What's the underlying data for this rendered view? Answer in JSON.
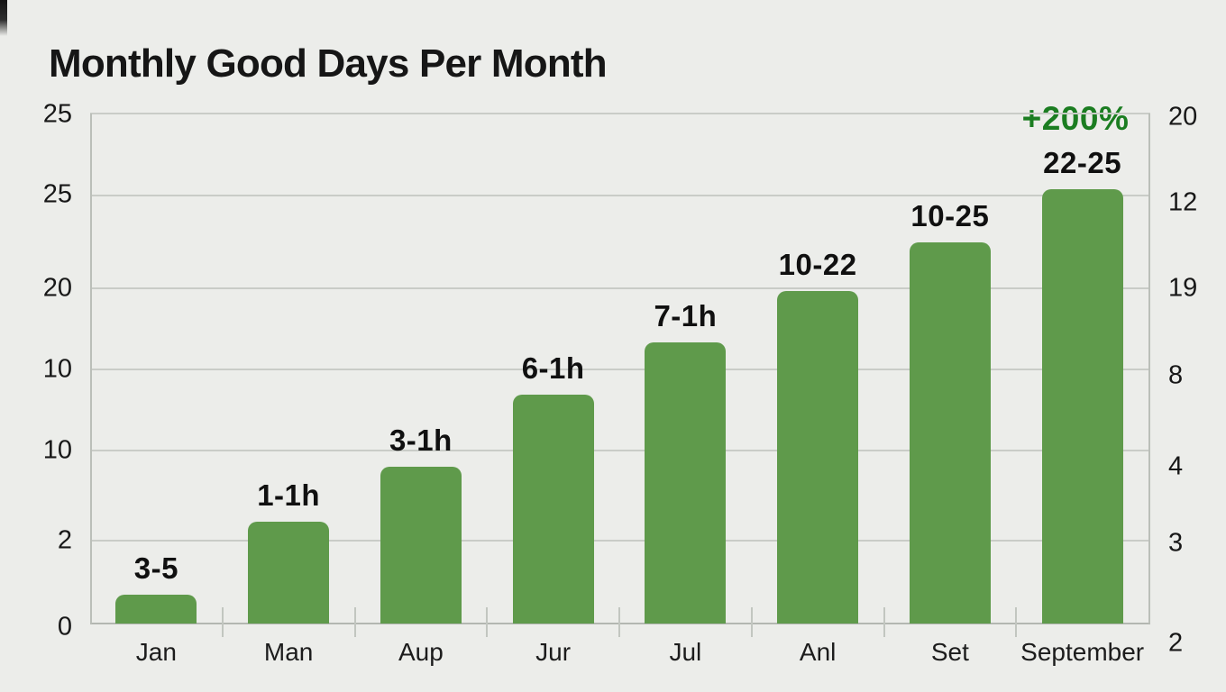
{
  "header": {
    "title": "Monthly Good Days Per Month"
  },
  "colors": {
    "background": "#ECEDEA",
    "bar": "#5F9A4B",
    "annotation_green": "#1B7D21",
    "gridline": "#C9CCC7",
    "text": "#141414"
  },
  "chart_data": {
    "type": "bar",
    "title": "Monthly Good Days Per Month",
    "categories": [
      "Jan",
      "Man",
      "Aup",
      "Jur",
      "Jul",
      "Anl",
      "Set",
      "September"
    ],
    "values": [
      1.4,
      5.0,
      7.7,
      11.2,
      13.8,
      16.3,
      18.7,
      21.3
    ],
    "bar_value_labels": [
      "3-5",
      "1-1h",
      "3-1h",
      "6-1h",
      "7-1h",
      "10-22",
      "10-25",
      "22-25"
    ],
    "annotation": {
      "text": "+200%",
      "color": "#1B7D21",
      "above_category": "September"
    },
    "y_axis_left_ticks": [
      "25",
      "25",
      "20",
      "10",
      "10",
      "2",
      "0"
    ],
    "y_axis_right_ticks": [
      "20",
      "12",
      "19",
      "8",
      "4",
      "3",
      "2"
    ],
    "ylim": [
      0,
      25
    ],
    "grid": true,
    "legend": false,
    "bar_color": "#5F9A4B",
    "xlabel": "",
    "ylabel": ""
  }
}
